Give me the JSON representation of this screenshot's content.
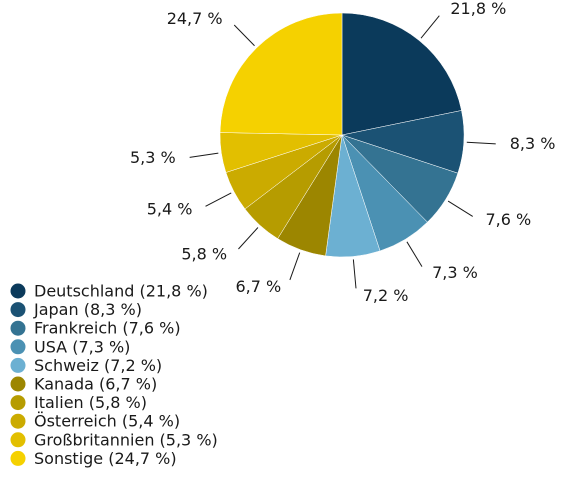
{
  "chart_data": {
    "type": "pie",
    "categories": [
      "Deutschland (21,8 %)",
      "Japan (8,3 %)",
      "Frankreich (7,6 %)",
      "USA (7,3 %)",
      "Schweiz (7,2 %)",
      "Kanada (6,7 %)",
      "Italien (5,8 %)",
      "Österreich (5,4 %)",
      "Großbritannien (5,3 %)",
      "Sonstige (24,7 %)"
    ],
    "values": [
      21.8,
      8.3,
      7.6,
      7.3,
      7.2,
      6.7,
      5.8,
      5.4,
      5.3,
      24.7
    ],
    "value_labels": [
      "21,8 %",
      "8,3 %",
      "7,6 %",
      "7,3 %",
      "7,2 %",
      "6,7 %",
      "5,8 %",
      "5,4 %",
      "5,3 %",
      "24,7 %"
    ],
    "colors": [
      "#0b3a5b",
      "#1b5274",
      "#347392",
      "#4b91b3",
      "#6cb0d2",
      "#9c8600",
      "#b69c00",
      "#cbab00",
      "#e2bf00",
      "#f5d100"
    ],
    "legend": "bottom-left"
  }
}
